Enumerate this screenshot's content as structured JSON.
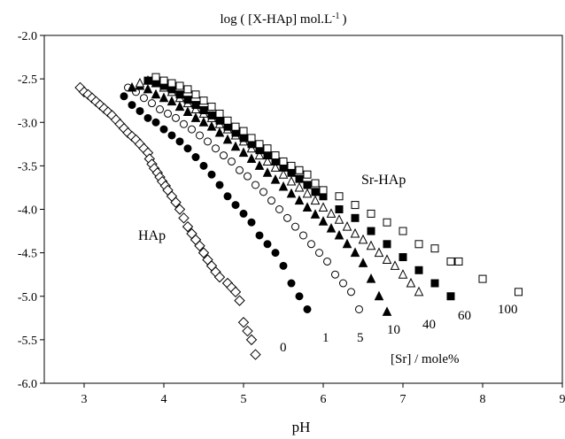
{
  "chart_data": {
    "type": "scatter",
    "title": "log ( [X-HAp] mol.L",
    "title_sup": "-1",
    "title_close": ")",
    "xlabel": "pH",
    "ylabel": "",
    "xlim": [
      2.5,
      9
    ],
    "ylim": [
      -6.0,
      -2.0
    ],
    "x_ticks": [
      3,
      4,
      5,
      6,
      7,
      8,
      9
    ],
    "y_ticks": [
      -2.0,
      -2.5,
      -3.0,
      -3.5,
      -4.0,
      -4.5,
      -5.0,
      -5.5,
      -6.0
    ],
    "y_tick_labels": [
      "-2.0",
      "-2.5",
      "-3.0",
      "-3.5",
      "-4.0",
      "-4.5",
      "-5.0",
      "-5.5",
      "-6.0"
    ],
    "grid": false,
    "annotations": {
      "hap": "HAp",
      "srhap": "Sr-HAp",
      "sr_axis": "[Sr] / mole%"
    },
    "series": [
      {
        "name": "0",
        "marker": "diamond-open",
        "x": [
          2.95,
          3.0,
          3.05,
          3.1,
          3.15,
          3.2,
          3.25,
          3.3,
          3.35,
          3.4,
          3.45,
          3.5,
          3.55,
          3.6,
          3.65,
          3.7,
          3.75,
          3.8,
          3.82,
          3.85,
          3.88,
          3.92,
          3.95,
          3.98,
          4.02,
          4.05,
          4.1,
          4.15,
          4.2,
          4.25,
          4.3,
          4.35,
          4.4,
          4.45,
          4.5,
          4.55,
          4.6,
          4.65,
          4.7,
          4.8,
          4.85,
          4.9,
          4.95,
          5.0,
          5.05,
          5.1,
          5.15
        ],
        "y": [
          -2.6,
          -2.65,
          -2.68,
          -2.72,
          -2.76,
          -2.8,
          -2.84,
          -2.88,
          -2.92,
          -2.97,
          -3.02,
          -3.07,
          -3.12,
          -3.16,
          -3.2,
          -3.25,
          -3.3,
          -3.35,
          -3.42,
          -3.48,
          -3.53,
          -3.58,
          -3.63,
          -3.68,
          -3.73,
          -3.78,
          -3.85,
          -3.92,
          -4.0,
          -4.1,
          -4.2,
          -4.28,
          -4.35,
          -4.42,
          -4.5,
          -4.58,
          -4.65,
          -4.72,
          -4.78,
          -4.85,
          -4.9,
          -4.95,
          -5.05,
          -5.3,
          -5.4,
          -5.5,
          -5.67
        ]
      },
      {
        "name": "1",
        "marker": "circle-filled",
        "x": [
          3.5,
          3.6,
          3.7,
          3.8,
          3.9,
          4.0,
          4.1,
          4.2,
          4.3,
          4.4,
          4.5,
          4.6,
          4.7,
          4.8,
          4.9,
          5.0,
          5.1,
          5.2,
          5.3,
          5.4,
          5.5,
          5.6,
          5.7,
          5.8
        ],
        "y": [
          -2.7,
          -2.8,
          -2.87,
          -2.95,
          -3.0,
          -3.08,
          -3.15,
          -3.22,
          -3.3,
          -3.4,
          -3.5,
          -3.6,
          -3.72,
          -3.85,
          -3.95,
          -4.05,
          -4.15,
          -4.3,
          -4.4,
          -4.5,
          -4.65,
          -4.85,
          -5.0,
          -5.15
        ]
      },
      {
        "name": "5",
        "marker": "circle-open",
        "x": [
          3.55,
          3.65,
          3.75,
          3.85,
          3.95,
          4.05,
          4.15,
          4.25,
          4.35,
          4.45,
          4.55,
          4.65,
          4.75,
          4.85,
          4.95,
          5.05,
          5.15,
          5.25,
          5.35,
          5.45,
          5.55,
          5.65,
          5.75,
          5.85,
          5.95,
          6.05,
          6.15,
          6.25,
          6.35,
          6.45
        ],
        "y": [
          -2.6,
          -2.65,
          -2.72,
          -2.78,
          -2.85,
          -2.9,
          -2.95,
          -3.02,
          -3.08,
          -3.15,
          -3.22,
          -3.3,
          -3.38,
          -3.45,
          -3.55,
          -3.62,
          -3.72,
          -3.8,
          -3.9,
          -4.0,
          -4.1,
          -4.2,
          -4.3,
          -4.4,
          -4.5,
          -4.6,
          -4.75,
          -4.85,
          -4.95,
          -5.15
        ]
      },
      {
        "name": "10",
        "marker": "triangle-filled",
        "x": [
          3.6,
          3.7,
          3.8,
          3.9,
          4.0,
          4.1,
          4.2,
          4.3,
          4.4,
          4.5,
          4.6,
          4.7,
          4.8,
          4.9,
          5.0,
          5.1,
          5.2,
          5.3,
          5.4,
          5.5,
          5.6,
          5.7,
          5.8,
          5.9,
          6.0,
          6.1,
          6.2,
          6.3,
          6.4,
          6.5,
          6.6,
          6.7,
          6.8
        ],
        "y": [
          -2.6,
          -2.58,
          -2.62,
          -2.68,
          -2.72,
          -2.76,
          -2.82,
          -2.88,
          -2.95,
          -3.0,
          -3.05,
          -3.12,
          -3.2,
          -3.28,
          -3.35,
          -3.42,
          -3.5,
          -3.58,
          -3.66,
          -3.74,
          -3.82,
          -3.9,
          -3.98,
          -4.06,
          -4.14,
          -4.22,
          -4.3,
          -4.4,
          -4.5,
          -4.62,
          -4.8,
          -5.0,
          -5.18
        ]
      },
      {
        "name": "40",
        "marker": "triangle-open",
        "x": [
          3.7,
          3.8,
          3.9,
          4.0,
          4.1,
          4.2,
          4.3,
          4.4,
          4.5,
          4.6,
          4.7,
          4.8,
          4.9,
          5.0,
          5.1,
          5.2,
          5.3,
          5.4,
          5.5,
          5.6,
          5.7,
          5.8,
          5.9,
          6.0,
          6.1,
          6.2,
          6.3,
          6.4,
          6.5,
          6.6,
          6.7,
          6.8,
          6.9,
          7.0,
          7.1,
          7.2
        ],
        "y": [
          -2.55,
          -2.52,
          -2.55,
          -2.6,
          -2.65,
          -2.72,
          -2.78,
          -2.85,
          -2.9,
          -2.95,
          -3.02,
          -3.08,
          -3.15,
          -3.22,
          -3.3,
          -3.38,
          -3.45,
          -3.52,
          -3.6,
          -3.68,
          -3.75,
          -3.82,
          -3.9,
          -3.98,
          -4.05,
          -4.12,
          -4.2,
          -4.28,
          -4.35,
          -4.42,
          -4.5,
          -4.58,
          -4.65,
          -4.75,
          -4.85,
          -4.95
        ]
      },
      {
        "name": "60",
        "marker": "square-filled",
        "x": [
          3.8,
          3.9,
          4.0,
          4.1,
          4.2,
          4.3,
          4.4,
          4.5,
          4.6,
          4.7,
          4.8,
          4.9,
          5.0,
          5.1,
          5.2,
          5.3,
          5.4,
          5.5,
          5.6,
          5.7,
          5.8,
          5.9,
          6.0,
          6.2,
          6.4,
          6.6,
          6.8,
          7.0,
          7.2,
          7.4,
          7.6
        ],
        "y": [
          -2.52,
          -2.55,
          -2.58,
          -2.62,
          -2.68,
          -2.74,
          -2.8,
          -2.86,
          -2.92,
          -2.98,
          -3.05,
          -3.12,
          -3.18,
          -3.25,
          -3.32,
          -3.38,
          -3.45,
          -3.52,
          -3.58,
          -3.65,
          -3.72,
          -3.8,
          -3.85,
          -4.0,
          -4.1,
          -4.25,
          -4.4,
          -4.55,
          -4.7,
          -4.85,
          -5.0
        ]
      },
      {
        "name": "100",
        "marker": "square-open",
        "x": [
          3.9,
          4.0,
          4.1,
          4.2,
          4.3,
          4.4,
          4.5,
          4.6,
          4.7,
          4.8,
          4.9,
          5.0,
          5.1,
          5.2,
          5.3,
          5.4,
          5.5,
          5.6,
          5.7,
          5.8,
          5.9,
          6.0,
          6.2,
          6.4,
          6.6,
          6.8,
          7.0,
          7.2,
          7.4,
          7.6,
          7.7,
          8.0,
          8.45
        ],
        "y": [
          -2.48,
          -2.52,
          -2.55,
          -2.58,
          -2.62,
          -2.68,
          -2.75,
          -2.82,
          -2.9,
          -2.98,
          -3.05,
          -3.1,
          -3.18,
          -3.25,
          -3.3,
          -3.38,
          -3.45,
          -3.5,
          -3.55,
          -3.6,
          -3.7,
          -3.78,
          -3.85,
          -3.95,
          -4.05,
          -4.15,
          -4.25,
          -4.4,
          -4.45,
          -4.6,
          -4.6,
          -4.8,
          -4.95
        ]
      }
    ]
  }
}
